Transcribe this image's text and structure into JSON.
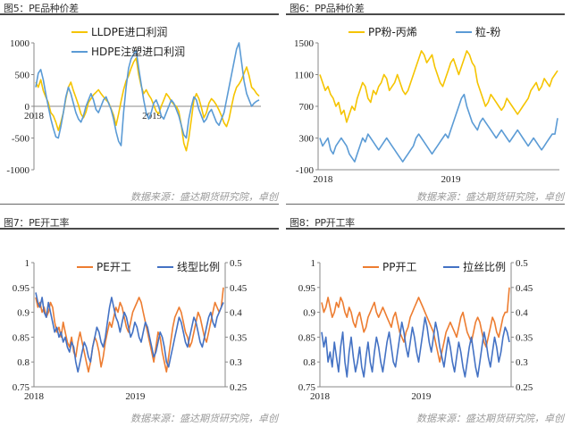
{
  "panels": [
    {
      "title": "图5：PE品种价差",
      "source": "数据来源：盛达期货研究院，卓创",
      "chart_data": {
        "type": "line",
        "x_ticks": [
          "2018",
          "2019"
        ],
        "ylim": [
          -1000,
          1000
        ],
        "y_ticks": [
          "1000",
          "500",
          "0",
          "-500",
          "-1000"
        ],
        "legend": "top",
        "series": [
          {
            "name": "LLDPE进口利润",
            "color": "#f5c400",
            "axis": "left",
            "values": [
              380,
              300,
              420,
              250,
              150,
              60,
              -100,
              -150,
              -250,
              -380,
              -250,
              -100,
              120,
              300,
              380,
              250,
              140,
              20,
              -120,
              -180,
              -90,
              60,
              120,
              180,
              220,
              260,
              200,
              150,
              100,
              60,
              -40,
              -140,
              -300,
              -120,
              80,
              260,
              400,
              480,
              600,
              700,
              760,
              500,
              320,
              200,
              260,
              180,
              120,
              20,
              -80,
              -120,
              0,
              100,
              200,
              150,
              80,
              30,
              0,
              -80,
              -300,
              -580,
              -700,
              -500,
              -200,
              100,
              200,
              120,
              -20,
              -180,
              -100,
              50,
              120,
              80,
              20,
              -60,
              -150,
              -260,
              -320,
              -200,
              0,
              180,
              300,
              350,
              420,
              520,
              620,
              480,
              300,
              260,
              200,
              160
            ]
          },
          {
            "name": "HDPE注塑进口利润",
            "color": "#5b9bd5",
            "axis": "left",
            "values": [
              300,
              520,
              580,
              420,
              200,
              0,
              -200,
              -350,
              -480,
              -500,
              -320,
              -100,
              150,
              300,
              200,
              50,
              -100,
              -200,
              -250,
              -150,
              0,
              100,
              200,
              100,
              -50,
              -100,
              0,
              100,
              150,
              50,
              -50,
              -200,
              -400,
              -550,
              -620,
              -100,
              300,
              600,
              750,
              820,
              880,
              600,
              350,
              100,
              -100,
              -200,
              -100,
              50,
              100,
              0,
              -150,
              -200,
              -100,
              0,
              100,
              50,
              -50,
              -150,
              -300,
              -450,
              -500,
              -200,
              0,
              150,
              100,
              -50,
              -150,
              -250,
              -200,
              -100,
              -50,
              -150,
              -250,
              -300,
              -200,
              -100,
              100,
              300,
              500,
              700,
              900,
              1000,
              700,
              400,
              200,
              100,
              0,
              50,
              80,
              100
            ]
          }
        ]
      }
    },
    {
      "title": "图6：PP品种价差",
      "source": "数据来源：盛达期货研究院，卓创",
      "chart_data": {
        "type": "line",
        "x_ticks": [
          "2018",
          "2019"
        ],
        "ylim": [
          -100,
          1500
        ],
        "y_ticks": [
          "1500",
          "1100",
          "700",
          "300",
          "-100"
        ],
        "legend": "top",
        "series": [
          {
            "name": "PP粉-丙烯",
            "color": "#f5c400",
            "axis": "left",
            "values": [
              1100,
              1000,
              900,
              950,
              850,
              800,
              700,
              750,
              600,
              650,
              500,
              600,
              700,
              650,
              800,
              900,
              1000,
              950,
              800,
              750,
              900,
              850,
              950,
              1000,
              1100,
              1050,
              900,
              950,
              1000,
              1100,
              1000,
              900,
              850,
              900,
              1000,
              1100,
              1200,
              1300,
              1400,
              1350,
              1250,
              1300,
              1350,
              1200,
              1100,
              1000,
              950,
              1050,
              1150,
              1250,
              1300,
              1200,
              1100,
              1200,
              1300,
              1400,
              1350,
              1250,
              1200,
              1000,
              900,
              800,
              700,
              750,
              850,
              800,
              750,
              700,
              650,
              700,
              800,
              750,
              700,
              650,
              600,
              650,
              700,
              750,
              800,
              900,
              950,
              1000,
              900,
              950,
              1050,
              1000,
              950,
              1050,
              1100,
              1150
            ]
          },
          {
            "name": "粒-粉",
            "color": "#5b9bd5",
            "axis": "left",
            "values": [
              300,
              200,
              250,
              300,
              150,
              100,
              200,
              250,
              300,
              250,
              200,
              100,
              50,
              0,
              100,
              200,
              300,
              250,
              350,
              300,
              250,
              200,
              150,
              200,
              250,
              300,
              250,
              200,
              150,
              100,
              50,
              0,
              50,
              100,
              150,
              200,
              300,
              350,
              300,
              250,
              200,
              150,
              100,
              150,
              200,
              250,
              300,
              350,
              300,
              400,
              500,
              600,
              700,
              800,
              850,
              700,
              600,
              500,
              450,
              400,
              500,
              550,
              500,
              450,
              400,
              350,
              300,
              350,
              400,
              350,
              300,
              250,
              300,
              350,
              400,
              350,
              300,
              250,
              200,
              250,
              300,
              250,
              200,
              150,
              200,
              250,
              300,
              350,
              350,
              550
            ]
          }
        ]
      }
    },
    {
      "title": "图7：PE开工率",
      "source": "数据来源：盛达期货研究院，卓创",
      "chart_data": {
        "type": "line",
        "x_ticks": [
          "2018",
          "2019"
        ],
        "ylim": [
          0.75,
          1
        ],
        "y_ticks": [
          "1",
          "0.95",
          "0.9",
          "0.85",
          "0.8",
          "0.75"
        ],
        "y2lim": [
          0.25,
          0.5
        ],
        "y2_ticks": [
          "0.5",
          "0.45",
          "0.4",
          "0.35",
          "0.3",
          "0.25"
        ],
        "legend": "top",
        "series": [
          {
            "name": "PE开工",
            "color": "#ed7d31",
            "axis": "left",
            "values": [
              0.93,
              0.91,
              0.92,
              0.9,
              0.91,
              0.89,
              0.9,
              0.92,
              0.91,
              0.88,
              0.86,
              0.87,
              0.85,
              0.88,
              0.86,
              0.84,
              0.83,
              0.85,
              0.82,
              0.81,
              0.84,
              0.86,
              0.84,
              0.82,
              0.8,
              0.78,
              0.8,
              0.83,
              0.85,
              0.84,
              0.82,
              0.79,
              0.81,
              0.84,
              0.86,
              0.88,
              0.87,
              0.89,
              0.91,
              0.9,
              0.92,
              0.91,
              0.89,
              0.87,
              0.86,
              0.88,
              0.9,
              0.91,
              0.92,
              0.93,
              0.92,
              0.9,
              0.88,
              0.86,
              0.84,
              0.82,
              0.8,
              0.83,
              0.86,
              0.85,
              0.82,
              0.8,
              0.78,
              0.81,
              0.84,
              0.87,
              0.89,
              0.9,
              0.91,
              0.9,
              0.88,
              0.86,
              0.85,
              0.83,
              0.84,
              0.86,
              0.88,
              0.9,
              0.89,
              0.87,
              0.85,
              0.84,
              0.86,
              0.88,
              0.9,
              0.92,
              0.91,
              0.9,
              0.91,
              0.95
            ]
          },
          {
            "name": "线型比例",
            "color": "#4472c4",
            "axis": "right",
            "values": [
              0.44,
              0.42,
              0.41,
              0.43,
              0.4,
              0.39,
              0.42,
              0.4,
              0.38,
              0.36,
              0.37,
              0.35,
              0.36,
              0.34,
              0.35,
              0.33,
              0.32,
              0.34,
              0.33,
              0.3,
              0.28,
              0.3,
              0.32,
              0.34,
              0.33,
              0.31,
              0.3,
              0.33,
              0.35,
              0.37,
              0.36,
              0.34,
              0.33,
              0.35,
              0.38,
              0.41,
              0.43,
              0.41,
              0.39,
              0.38,
              0.36,
              0.38,
              0.4,
              0.39,
              0.37,
              0.35,
              0.36,
              0.38,
              0.37,
              0.35,
              0.34,
              0.36,
              0.38,
              0.37,
              0.35,
              0.33,
              0.31,
              0.32,
              0.34,
              0.36,
              0.35,
              0.33,
              0.3,
              0.29,
              0.31,
              0.33,
              0.35,
              0.37,
              0.39,
              0.38,
              0.36,
              0.34,
              0.33,
              0.35,
              0.37,
              0.39,
              0.38,
              0.36,
              0.34,
              0.33,
              0.35,
              0.37,
              0.39,
              0.4,
              0.38,
              0.37,
              0.39,
              0.4,
              0.41,
              0.42
            ]
          }
        ]
      }
    },
    {
      "title": "图8：PP开工率",
      "source": "数据来源：盛达期货研究院，卓创",
      "chart_data": {
        "type": "line",
        "x_ticks": [
          "2018",
          "2019"
        ],
        "ylim": [
          0.75,
          1
        ],
        "y_ticks": [
          "1",
          "0.95",
          "0.9",
          "0.85",
          "0.8",
          "0.75"
        ],
        "y2lim": [
          0.25,
          0.5
        ],
        "y2_ticks": [
          "0.5",
          "0.45",
          "0.4",
          "0.35",
          "0.3",
          "0.25"
        ],
        "legend": "top",
        "series": [
          {
            "name": "PP开工",
            "color": "#ed7d31",
            "axis": "left",
            "values": [
              0.92,
              0.9,
              0.91,
              0.93,
              0.91,
              0.89,
              0.9,
              0.92,
              0.91,
              0.93,
              0.92,
              0.9,
              0.89,
              0.91,
              0.9,
              0.88,
              0.87,
              0.89,
              0.9,
              0.88,
              0.86,
              0.87,
              0.89,
              0.9,
              0.91,
              0.92,
              0.9,
              0.89,
              0.9,
              0.91,
              0.9,
              0.89,
              0.88,
              0.87,
              0.89,
              0.9,
              0.88,
              0.86,
              0.85,
              0.84,
              0.86,
              0.87,
              0.89,
              0.9,
              0.91,
              0.92,
              0.93,
              0.92,
              0.91,
              0.9,
              0.89,
              0.88,
              0.87,
              0.86,
              0.84,
              0.82,
              0.8,
              0.82,
              0.84,
              0.86,
              0.87,
              0.88,
              0.87,
              0.86,
              0.85,
              0.87,
              0.89,
              0.9,
              0.88,
              0.86,
              0.85,
              0.84,
              0.86,
              0.88,
              0.89,
              0.88,
              0.86,
              0.84,
              0.83,
              0.85,
              0.87,
              0.89,
              0.88,
              0.86,
              0.85,
              0.87,
              0.89,
              0.9,
              0.9,
              0.95
            ]
          },
          {
            "name": "拉丝比例",
            "color": "#4472c4",
            "axis": "right",
            "values": [
              0.36,
              0.33,
              0.35,
              0.3,
              0.32,
              0.29,
              0.34,
              0.31,
              0.28,
              0.33,
              0.36,
              0.3,
              0.27,
              0.32,
              0.35,
              0.31,
              0.28,
              0.3,
              0.33,
              0.29,
              0.27,
              0.31,
              0.34,
              0.3,
              0.28,
              0.32,
              0.35,
              0.33,
              0.3,
              0.28,
              0.31,
              0.34,
              0.36,
              0.33,
              0.3,
              0.29,
              0.32,
              0.35,
              0.38,
              0.36,
              0.33,
              0.31,
              0.34,
              0.37,
              0.35,
              0.32,
              0.3,
              0.33,
              0.36,
              0.39,
              0.37,
              0.34,
              0.32,
              0.35,
              0.38,
              0.36,
              0.33,
              0.31,
              0.29,
              0.32,
              0.35,
              0.33,
              0.3,
              0.28,
              0.31,
              0.34,
              0.32,
              0.29,
              0.27,
              0.3,
              0.33,
              0.35,
              0.32,
              0.29,
              0.27,
              0.3,
              0.33,
              0.36,
              0.34,
              0.31,
              0.29,
              0.32,
              0.35,
              0.33,
              0.3,
              0.32,
              0.35,
              0.37,
              0.36,
              0.34
            ]
          }
        ]
      }
    }
  ]
}
